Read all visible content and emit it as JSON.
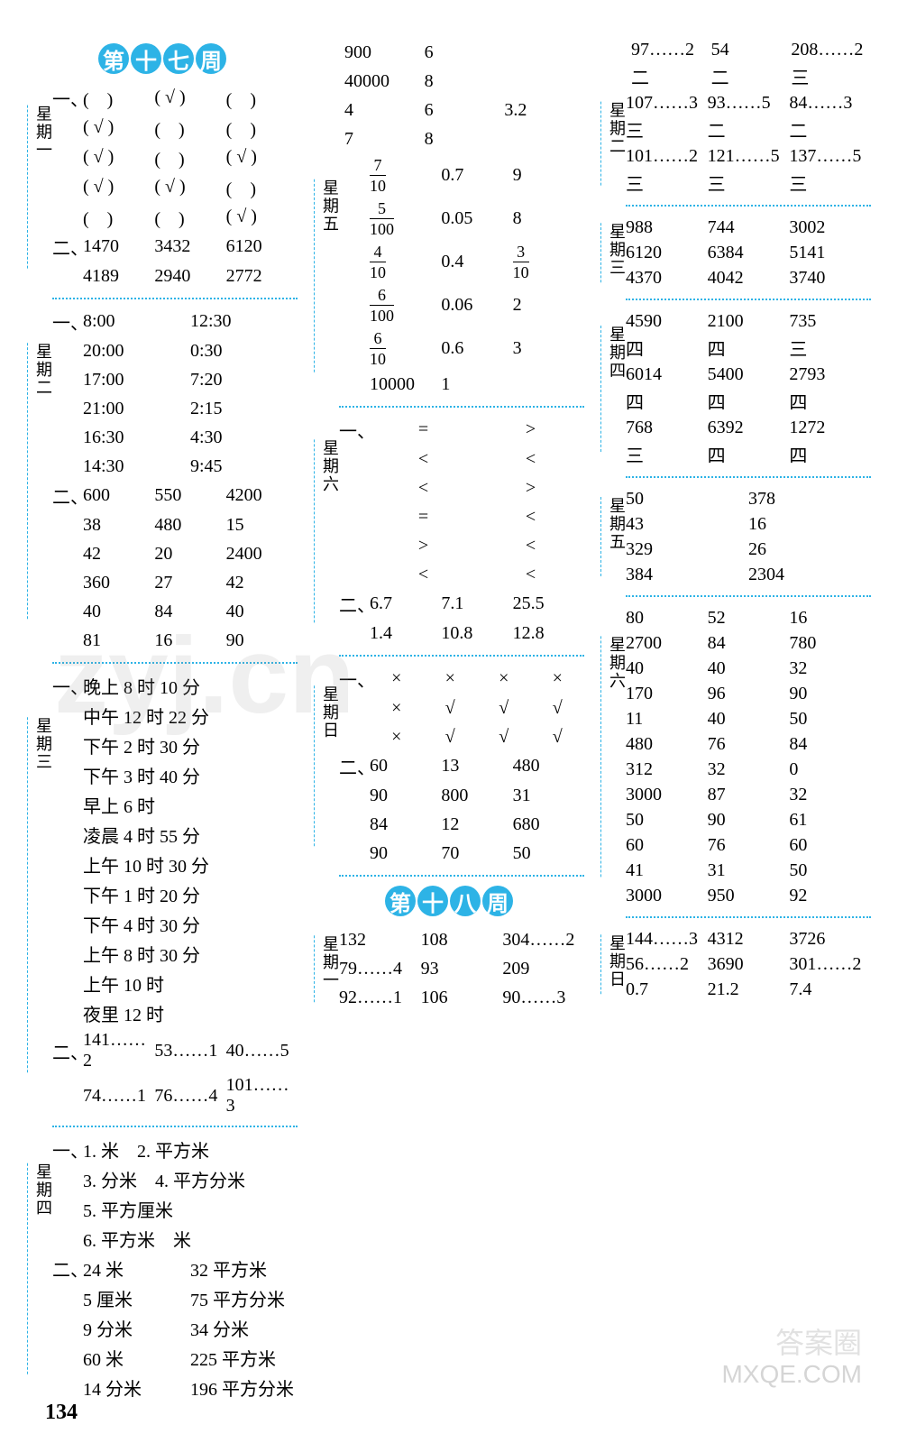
{
  "watermarks": {
    "main": "zyj.cn",
    "corner1": "答案圈",
    "corner2": "MXQE.COM"
  },
  "page_number": "134",
  "week17_title": [
    "第",
    "十",
    "七",
    "周"
  ],
  "week18_title": [
    "第",
    "十",
    "八",
    "周"
  ],
  "day_labels": {
    "mon": "星期一",
    "tue": "星期二",
    "wed": "星期三",
    "thu": "星期四",
    "fri": "星期五",
    "sat": "星期六",
    "sun": "星期日"
  },
  "col1": {
    "mon": {
      "p1_lead": "一、",
      "p1": [
        [
          "(　)",
          "( √ )",
          "(　)"
        ],
        [
          "( √ )",
          "(　)",
          "(　)"
        ],
        [
          "( √ )",
          "(　)",
          "( √ )"
        ],
        [
          "( √ )",
          "( √ )",
          "(　)"
        ],
        [
          "(　)",
          "(　)",
          "( √ )"
        ]
      ],
      "p2_lead": "二、",
      "p2": [
        [
          "1470",
          "3432",
          "6120"
        ],
        [
          "4189",
          "2940",
          "2772"
        ]
      ]
    },
    "tue": {
      "p1_lead": "一、",
      "p1": [
        [
          "8:00",
          "12:30"
        ],
        [
          "20:00",
          "0:30"
        ],
        [
          "17:00",
          "7:20"
        ],
        [
          "21:00",
          "2:15"
        ],
        [
          "16:30",
          "4:30"
        ],
        [
          "14:30",
          "9:45"
        ]
      ],
      "p2_lead": "二、",
      "p2": [
        [
          "600",
          "550",
          "4200"
        ],
        [
          "38",
          "480",
          "15"
        ],
        [
          "42",
          "20",
          "2400"
        ],
        [
          "360",
          "27",
          "42"
        ],
        [
          "40",
          "84",
          "40"
        ],
        [
          "81",
          "16",
          "90"
        ]
      ]
    },
    "wed": {
      "p1_lead": "一、",
      "p1": [
        "晚上 8 时 10 分",
        "中午 12 时 22 分",
        "下午 2 时 30 分",
        "下午 3 时 40 分",
        "早上 6 时",
        "凌晨 4 时 55 分",
        "上午 10 时 30 分",
        "下午 1 时 20 分",
        "下午 4 时 30 分",
        "上午 8 时 30 分",
        "上午 10 时",
        "夜里 12 时"
      ],
      "p2_lead": "二、",
      "p2": [
        [
          "141……2",
          "53……1",
          "40……5"
        ],
        [
          "74……1",
          "76……4",
          "101……3"
        ]
      ]
    },
    "thu": {
      "p1_lead": "一、",
      "p1": [
        "1. 米　2. 平方米",
        "3. 分米　4. 平方分米",
        "5. 平方厘米",
        "6. 平方米　米"
      ],
      "p2_lead": "二、",
      "p2": [
        [
          "24 米",
          "32 平方米"
        ],
        [
          "5 厘米",
          "75 平方分米"
        ],
        [
          "9 分米",
          "34 分米"
        ],
        [
          "60 米",
          "225 平方米"
        ],
        [
          "14 分米",
          "196 平方分米"
        ]
      ]
    }
  },
  "col2": {
    "top": [
      [
        "900",
        "6",
        ""
      ],
      [
        "40000",
        "8",
        ""
      ],
      [
        "4",
        "6",
        "3.2"
      ],
      [
        "7",
        "8",
        ""
      ]
    ],
    "fri": {
      "fracs": [
        {
          "n": "7",
          "d": "10",
          "b": "0.7",
          "c": "9"
        },
        {
          "n": "5",
          "d": "100",
          "b": "0.05",
          "c": "8"
        },
        {
          "n": "4",
          "d": "10",
          "b": "0.4",
          "frac2": {
            "n": "3",
            "d": "10"
          }
        },
        {
          "n": "6",
          "d": "100",
          "b": "0.06",
          "c": "2"
        },
        {
          "n": "6",
          "d": "10",
          "b": "0.6",
          "c": "3"
        }
      ],
      "last": [
        "10000",
        "1",
        ""
      ]
    },
    "sat": {
      "p1_lead": "一、",
      "p1": [
        [
          "=",
          ">"
        ],
        [
          "<",
          "<"
        ],
        [
          "<",
          ">"
        ],
        [
          "=",
          "<"
        ],
        [
          ">",
          "<"
        ],
        [
          "<",
          "<"
        ]
      ],
      "p2_lead": "二、",
      "p2": [
        [
          "6.7",
          "7.1",
          "25.5"
        ],
        [
          "1.4",
          "10.8",
          "12.8"
        ]
      ]
    },
    "sun": {
      "p1_lead": "一、",
      "p1": [
        [
          "×",
          "×",
          "×",
          "×"
        ],
        [
          "×",
          "√",
          "√",
          "√"
        ],
        [
          "×",
          "√",
          "√",
          "√"
        ]
      ],
      "p2_lead": "二、",
      "p2": [
        [
          "60",
          "13",
          "480"
        ],
        [
          "90",
          "800",
          "31"
        ],
        [
          "84",
          "12",
          "680"
        ],
        [
          "90",
          "70",
          "50"
        ]
      ]
    },
    "w18_mon": {
      "rows": [
        [
          "132",
          "108",
          "304……2"
        ],
        [
          "79……4",
          "93",
          "209"
        ],
        [
          "92……1",
          "106",
          "90……3"
        ]
      ]
    }
  },
  "col3": {
    "top": [
      [
        "97……2",
        "54",
        "208……2"
      ],
      [
        "二",
        "二",
        "三"
      ]
    ],
    "tue": {
      "rows": [
        [
          "107……3",
          "93……5",
          "84……3"
        ],
        [
          "三",
          "二",
          "二"
        ],
        [
          "101……2",
          "121……5",
          "137……5"
        ],
        [
          "三",
          "三",
          "三"
        ]
      ]
    },
    "wed": {
      "rows": [
        [
          "988",
          "744",
          "3002"
        ],
        [
          "6120",
          "6384",
          "5141"
        ],
        [
          "4370",
          "4042",
          "3740"
        ]
      ]
    },
    "thu": {
      "rows": [
        [
          "4590",
          "2100",
          "735"
        ],
        [
          "四",
          "四",
          "三"
        ],
        [
          "6014",
          "5400",
          "2793"
        ],
        [
          "四",
          "四",
          "四"
        ],
        [
          "768",
          "6392",
          "1272"
        ],
        [
          "三",
          "四",
          "四"
        ]
      ]
    },
    "fri": {
      "rows": [
        [
          "50",
          "378"
        ],
        [
          "43",
          "16"
        ],
        [
          "329",
          "26"
        ],
        [
          "384",
          "2304"
        ]
      ]
    },
    "sat": {
      "rows": [
        [
          "80",
          "52",
          "16"
        ],
        [
          "2700",
          "84",
          "780"
        ],
        [
          "40",
          "40",
          "32"
        ],
        [
          "170",
          "96",
          "90"
        ],
        [
          "11",
          "40",
          "50"
        ],
        [
          "480",
          "76",
          "84"
        ],
        [
          "312",
          "32",
          "0"
        ],
        [
          "3000",
          "87",
          "32"
        ],
        [
          "50",
          "90",
          "61"
        ],
        [
          "60",
          "76",
          "60"
        ],
        [
          "41",
          "31",
          "50"
        ],
        [
          "3000",
          "950",
          "92"
        ]
      ]
    },
    "sun": {
      "rows": [
        [
          "144……3",
          "4312",
          "3726"
        ],
        [
          "56……2",
          "3690",
          "301……2"
        ],
        [
          "0.7",
          "21.2",
          "7.4"
        ]
      ]
    }
  }
}
